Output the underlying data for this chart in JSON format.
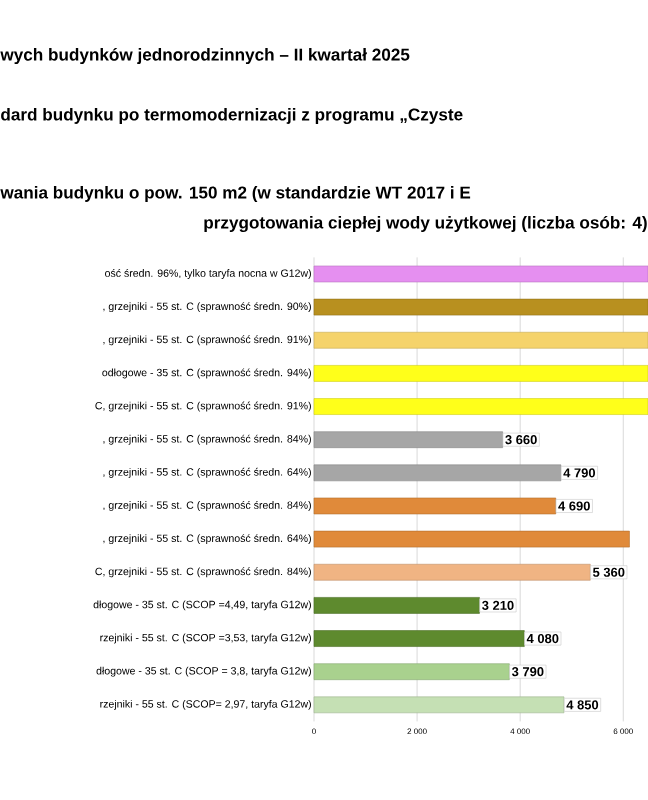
{
  "chart_data": {
    "type": "bar",
    "orientation": "horizontal",
    "title": "wych budynków jednorodzinnych – II kwartał 2025",
    "subtitle": "dard budynku po termomodernizacji z programu „Czyste",
    "annotations": [
      "wania budynku o pow. 150 m2 (w standardzie WT 2017 i E",
      "przygotowania ciepłej wody użytkowej (liczba osób: 4)"
    ],
    "categories": [
      "ość średn. 96%, tylko taryfa nocna w G12w)",
      ", grzejniki - 55 st. C (sprawność średn. 90%)",
      ", grzejniki - 55 st. C (sprawność średn. 91%)",
      "odłogowe - 35 st. C (sprawność średn. 94%)",
      "C, grzejniki - 55 st. C (sprawność średn. 91%)",
      ", grzejniki - 55 st. C (sprawność średn. 84%)",
      ", grzejniki - 55 st. C (sprawność średn. 64%)",
      ", grzejniki - 55 st. C (sprawność średn. 84%)",
      ", grzejniki - 55 st. C (sprawność średn. 64%)",
      "C, grzejniki - 55 st. C (sprawność średn. 84%)",
      "dłogowe - 35 st. C (SCOP =4,49, taryfa G12w)",
      "rzejniki - 55 st. C (SCOP =3,53, taryfa G12w)",
      "dłogowe - 35 st. C (SCOP = 3,8, taryfa G12w)",
      "rzejniki - 55 st. C (SCOP= 2,97, taryfa G12w)"
    ],
    "values": [
      6480,
      6480,
      6480,
      6480,
      6480,
      3660,
      4790,
      4690,
      6120,
      5360,
      3210,
      4080,
      3790,
      4850
    ],
    "value_labels": [
      null,
      null,
      null,
      null,
      null,
      "3 660",
      "4 790",
      "4 690",
      null,
      "5 360",
      "3 210",
      "4 080",
      "3 790",
      "4 850"
    ],
    "colors": [
      "#e58ff0",
      "#b8901f",
      "#f5d36b",
      "#ffff1a",
      "#ffff1a",
      "#a6a6a6",
      "#a6a6a6",
      "#e08a3a",
      "#e08a3a",
      "#f0b483",
      "#5e8a2e",
      "#5e8a2e",
      "#a9d18e",
      "#c5e0b4"
    ],
    "xlim": [
      0,
      6480
    ],
    "xticks": [
      0,
      {
        "value": 2000,
        "label": "2 000"
      },
      {
        "value": 4000,
        "label": "4 000"
      },
      {
        "value": 6000,
        "label": "6 000"
      }
    ],
    "grid": "x"
  }
}
